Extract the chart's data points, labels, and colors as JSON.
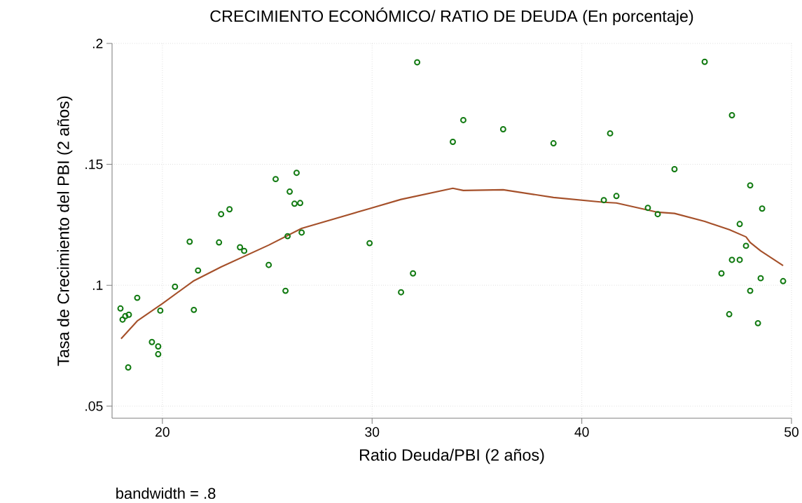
{
  "chart_data": {
    "type": "scatter",
    "title": "CRECIMIENTO ECONÓMICO/ RATIO DE DEUDA (En porcentaje)",
    "xlabel": "Ratio Deuda/PBI (2 años)",
    "ylabel": "Tasa de Crecimiento del PBI (2 años)",
    "annotations": [
      "bandwidth = .8"
    ],
    "xlim": [
      17.6,
      50
    ],
    "ylim": [
      0.045,
      0.2
    ],
    "xticks": [
      20,
      30,
      40,
      50
    ],
    "yticks": [
      {
        "value": 0.05,
        "label": ".05"
      },
      {
        "value": 0.1,
        "label": ".1"
      },
      {
        "value": 0.15,
        "label": ".15"
      },
      {
        "value": 0.2,
        "label": ".2"
      }
    ],
    "grid": true,
    "series": [
      {
        "type": "scatter",
        "color": "#117a11",
        "marker": "circle",
        "x": [
          18.0,
          18.1,
          18.23,
          18.4,
          18.37,
          18.8,
          19.5,
          19.8,
          19.8,
          19.9,
          20.6,
          21.3,
          21.5,
          21.7,
          22.7,
          22.8,
          23.2,
          23.7,
          23.9,
          25.07,
          25.4,
          25.87,
          25.97,
          26.07,
          26.3,
          26.4,
          26.57,
          26.64,
          29.88,
          31.38,
          31.95,
          32.15,
          33.85,
          34.35,
          36.25,
          38.65,
          41.05,
          41.35,
          41.65,
          43.15,
          43.62,
          44.42,
          45.86,
          46.66,
          47.03,
          47.16,
          47.16,
          47.53,
          47.53,
          47.83,
          48.03,
          48.03,
          48.4,
          48.53,
          48.6,
          49.6
        ],
        "values": [
          0.0904,
          0.0858,
          0.0872,
          0.0878,
          0.066,
          0.0948,
          0.0765,
          0.0747,
          0.0715,
          0.0895,
          0.0994,
          0.118,
          0.0898,
          0.1061,
          0.1177,
          0.1294,
          0.1314,
          0.1157,
          0.1142,
          0.1084,
          0.1439,
          0.0977,
          0.1203,
          0.1387,
          0.1337,
          0.1465,
          0.134,
          0.1218,
          0.1174,
          0.0971,
          0.1049,
          0.1922,
          0.1593,
          0.1683,
          0.1645,
          0.1587,
          0.1352,
          0.1628,
          0.1369,
          0.132,
          0.1294,
          0.148,
          0.1924,
          0.1049,
          0.088,
          0.1703,
          0.1105,
          0.1105,
          0.1253,
          0.1163,
          0.1413,
          0.0977,
          0.0843,
          0.1029,
          0.1317,
          0.1017
        ]
      },
      {
        "type": "line",
        "color": "#a5502a",
        "marker": "none",
        "line_style": "solid",
        "x": [
          18.03,
          18.8,
          20,
          21.47,
          22.8,
          25.07,
          26.64,
          29.88,
          31.38,
          33.85,
          34.35,
          36.25,
          38.65,
          41.05,
          41.65,
          43.62,
          44.42,
          45.86,
          47.03,
          47.83,
          48.03,
          48.53,
          49.6
        ],
        "values": [
          0.0779,
          0.0852,
          0.0924,
          0.1017,
          0.1076,
          0.1166,
          0.1235,
          0.1317,
          0.1355,
          0.1401,
          0.1392,
          0.1395,
          0.1363,
          0.1343,
          0.134,
          0.1302,
          0.1297,
          0.1264,
          0.123,
          0.12,
          0.1177,
          0.1142,
          0.1081
        ]
      }
    ]
  }
}
